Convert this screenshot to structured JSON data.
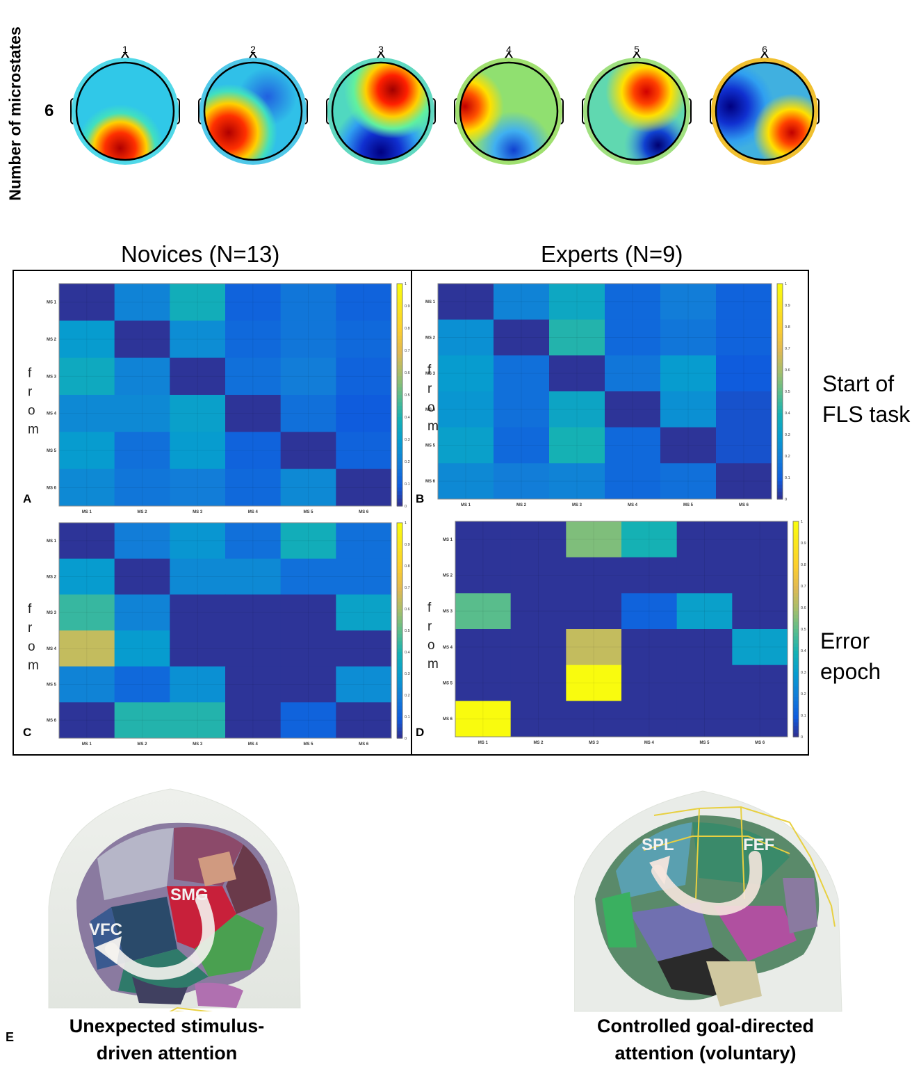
{
  "topomaps": {
    "ylabel": "Number of microstates",
    "row_value": "6",
    "maps": [
      {
        "label": "1"
      },
      {
        "label": "2"
      },
      {
        "label": "3"
      },
      {
        "label": "4"
      },
      {
        "label": "5"
      },
      {
        "label": "6"
      }
    ]
  },
  "groups": {
    "novices": "Novices (N=13)",
    "experts": "Experts (N=9)"
  },
  "rows": {
    "start": "Start of\nFLS task",
    "error": "Error\nepoch"
  },
  "from_letters": [
    "f",
    "r",
    "o",
    "m"
  ],
  "bottom": {
    "panel_letter": "E",
    "left_caption": "Unexpected stimulus-\ndriven attention",
    "right_caption": "Controlled goal-directed\nattention (voluntary)",
    "left_regions": [
      "SMG",
      "VFC"
    ],
    "right_regions": [
      "SPL",
      "FEF"
    ]
  },
  "chart_data": [
    {
      "type": "heatmap",
      "panel": "A",
      "ylabel": "from",
      "x_categories": [
        "MS 1",
        "MS 2",
        "MS 3",
        "MS 4",
        "MS 5",
        "MS 6"
      ],
      "y_categories": [
        "MS 1",
        "MS 2",
        "MS 3",
        "MS 4",
        "MS 5",
        "MS 6"
      ],
      "colorbar_ticks": [
        "0",
        "0.1",
        "0.2",
        "0.3",
        "0.4",
        "0.5",
        "0.6",
        "0.7",
        "0.8",
        "0.9",
        "1"
      ],
      "clim": [
        0,
        1
      ],
      "values": [
        [
          0.02,
          0.22,
          0.38,
          0.12,
          0.18,
          0.12
        ],
        [
          0.3,
          0.02,
          0.25,
          0.14,
          0.18,
          0.14
        ],
        [
          0.36,
          0.22,
          0.02,
          0.16,
          0.2,
          0.12
        ],
        [
          0.24,
          0.24,
          0.32,
          0.02,
          0.16,
          0.1
        ],
        [
          0.3,
          0.16,
          0.3,
          0.12,
          0.02,
          0.12
        ],
        [
          0.24,
          0.18,
          0.2,
          0.14,
          0.24,
          0.02
        ]
      ]
    },
    {
      "type": "heatmap",
      "panel": "B",
      "ylabel": "from",
      "x_categories": [
        "MS 1",
        "MS 2",
        "MS 3",
        "MS 4",
        "MS 5",
        "MS 6"
      ],
      "y_categories": [
        "MS 1",
        "MS 2",
        "MS 3",
        "MS 4",
        "MS 5",
        "MS 6"
      ],
      "colorbar_ticks": [
        "0",
        "0.1",
        "0.2",
        "0.3",
        "0.4",
        "0.5",
        "0.6",
        "0.7",
        "0.8",
        "0.9",
        "1"
      ],
      "clim": [
        0,
        1
      ],
      "values": [
        [
          0.02,
          0.22,
          0.35,
          0.14,
          0.2,
          0.12
        ],
        [
          0.26,
          0.02,
          0.42,
          0.14,
          0.18,
          0.12
        ],
        [
          0.3,
          0.16,
          0.02,
          0.18,
          0.3,
          0.1
        ],
        [
          0.28,
          0.16,
          0.34,
          0.02,
          0.26,
          0.08
        ],
        [
          0.32,
          0.14,
          0.4,
          0.14,
          0.02,
          0.08
        ],
        [
          0.24,
          0.2,
          0.22,
          0.14,
          0.16,
          0.02
        ]
      ]
    },
    {
      "type": "heatmap",
      "panel": "C",
      "ylabel": "from",
      "x_categories": [
        "MS 1",
        "MS 2",
        "MS 3",
        "MS 4",
        "MS 5",
        "MS 6"
      ],
      "y_categories": [
        "MS 1",
        "MS 2",
        "MS 3",
        "MS 4",
        "MS 5",
        "MS 6"
      ],
      "colorbar_ticks": [
        "0",
        "0.1",
        "0.2",
        "0.3",
        "0.4",
        "0.5",
        "0.6",
        "0.7",
        "0.8",
        "0.9",
        "1"
      ],
      "clim": [
        0,
        1
      ],
      "values": [
        [
          0.02,
          0.2,
          0.28,
          0.16,
          0.38,
          0.16
        ],
        [
          0.3,
          0.02,
          0.24,
          0.24,
          0.16,
          0.16
        ],
        [
          0.45,
          0.22,
          0.02,
          0.02,
          0.02,
          0.33
        ],
        [
          0.65,
          0.3,
          0.02,
          0.02,
          0.02,
          0.02
        ],
        [
          0.22,
          0.14,
          0.26,
          0.02,
          0.02,
          0.25
        ],
        [
          0.02,
          0.42,
          0.42,
          0.02,
          0.12,
          0.02
        ]
      ]
    },
    {
      "type": "heatmap",
      "panel": "D",
      "ylabel": "from",
      "x_categories": [
        "MS 1",
        "MS 2",
        "MS 3",
        "MS 4",
        "MS 5",
        "MS 6"
      ],
      "y_categories": [
        "MS 1",
        "MS 2",
        "MS 3",
        "MS 4",
        "MS 5",
        "MS 6"
      ],
      "colorbar_ticks": [
        "0",
        "0.1",
        "0.2",
        "0.3",
        "0.4",
        "0.5",
        "0.6",
        "0.7",
        "0.8",
        "0.9",
        "1"
      ],
      "clim": [
        0,
        1
      ],
      "values": [
        [
          0.02,
          0.02,
          0.55,
          0.4,
          0.02,
          0.02
        ],
        [
          0.02,
          0.02,
          0.02,
          0.02,
          0.02,
          0.02
        ],
        [
          0.5,
          0.02,
          0.02,
          0.12,
          0.32,
          0.02
        ],
        [
          0.02,
          0.02,
          0.65,
          0.02,
          0.02,
          0.32
        ],
        [
          0.02,
          0.02,
          1.0,
          0.02,
          0.02,
          0.02
        ],
        [
          1.0,
          0.02,
          0.02,
          0.02,
          0.02,
          0.02
        ]
      ]
    }
  ]
}
